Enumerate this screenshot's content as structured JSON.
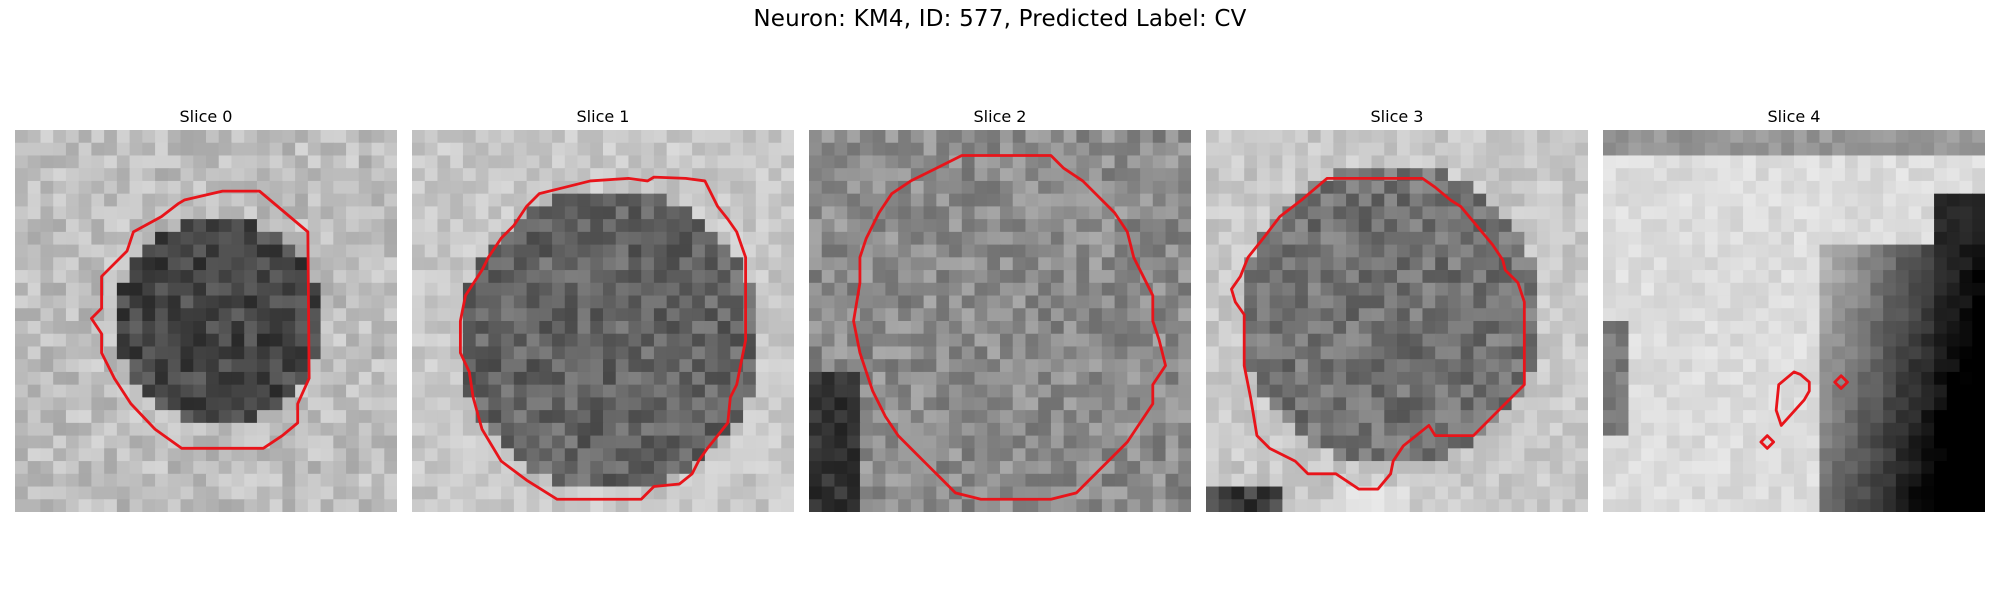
{
  "figure": {
    "title": "Neuron: KM4, ID: 577, Predicted Label: CV"
  },
  "contour_color": "#e8141a",
  "panels": [
    {
      "title": "Slice 0",
      "pattern": "dark-blob"
    },
    {
      "title": "Slice 1",
      "pattern": "dark-blob"
    },
    {
      "title": "Slice 2",
      "pattern": "mid-gray-fill"
    },
    {
      "title": "Slice 3",
      "pattern": "dark-blob"
    },
    {
      "title": "Slice 4",
      "pattern": "bright-with-dark-right"
    }
  ]
}
